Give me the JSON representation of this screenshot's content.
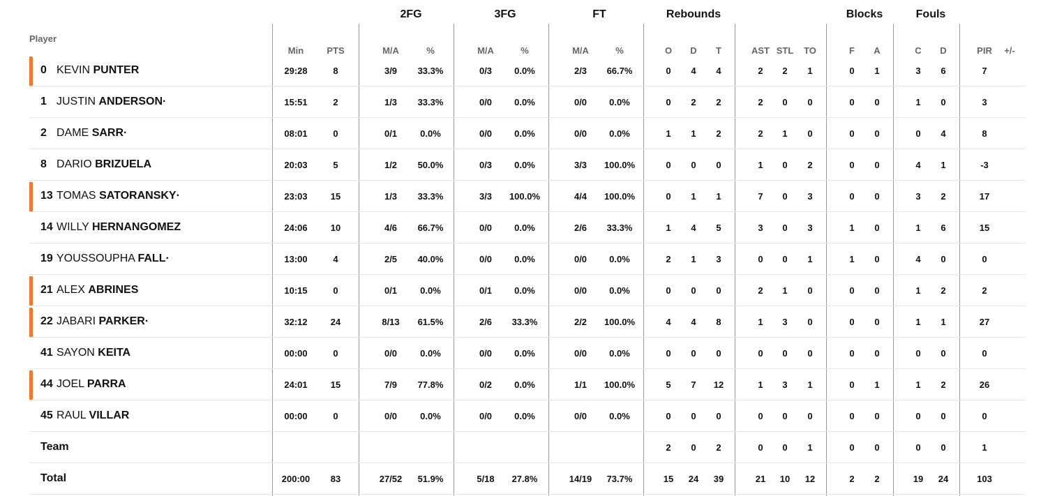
{
  "headers": {
    "player": "Player",
    "groups": {
      "fg2": "2FG",
      "fg3": "3FG",
      "ft": "FT",
      "rebounds": "Rebounds",
      "blocks": "Blocks",
      "fouls": "Fouls"
    },
    "columns": [
      "Min",
      "PTS",
      "M/A",
      "%",
      "M/A",
      "%",
      "M/A",
      "%",
      "O",
      "D",
      "T",
      "AST",
      "STL",
      "TO",
      "F",
      "A",
      "C",
      "D",
      "PIR",
      "+/-"
    ]
  },
  "colors": {
    "starter_accent": "#f4772f",
    "separator": "#9a9a9a",
    "row_line": "#e6e6e6",
    "header_text": "#666666"
  },
  "players": [
    {
      "number": "0",
      "first": "KEVIN",
      "last": "PUNTER",
      "dot": "",
      "starter": true,
      "stats": [
        "29:28",
        "8",
        "3/9",
        "33.3%",
        "0/3",
        "0.0%",
        "2/3",
        "66.7%",
        "0",
        "4",
        "4",
        "2",
        "2",
        "1",
        "0",
        "1",
        "3",
        "6",
        "7",
        ""
      ]
    },
    {
      "number": "1",
      "first": "JUSTIN",
      "last": "ANDERSON",
      "dot": "·",
      "starter": false,
      "stats": [
        "15:51",
        "2",
        "1/3",
        "33.3%",
        "0/0",
        "0.0%",
        "0/0",
        "0.0%",
        "0",
        "2",
        "2",
        "2",
        "0",
        "0",
        "0",
        "0",
        "1",
        "0",
        "3",
        ""
      ]
    },
    {
      "number": "2",
      "first": "DAME",
      "last": "SARR",
      "dot": "·",
      "starter": false,
      "stats": [
        "08:01",
        "0",
        "0/1",
        "0.0%",
        "0/0",
        "0.0%",
        "0/0",
        "0.0%",
        "1",
        "1",
        "2",
        "2",
        "1",
        "0",
        "0",
        "0",
        "0",
        "4",
        "8",
        ""
      ]
    },
    {
      "number": "8",
      "first": "DARIO",
      "last": "BRIZUELA",
      "dot": "",
      "starter": false,
      "stats": [
        "20:03",
        "5",
        "1/2",
        "50.0%",
        "0/3",
        "0.0%",
        "3/3",
        "100.0%",
        "0",
        "0",
        "0",
        "1",
        "0",
        "2",
        "0",
        "0",
        "4",
        "1",
        "-3",
        ""
      ]
    },
    {
      "number": "13",
      "first": "TOMAS",
      "last": "SATORANSKY",
      "dot": "·",
      "starter": true,
      "stats": [
        "23:03",
        "15",
        "1/3",
        "33.3%",
        "3/3",
        "100.0%",
        "4/4",
        "100.0%",
        "0",
        "1",
        "1",
        "7",
        "0",
        "3",
        "0",
        "0",
        "3",
        "2",
        "17",
        ""
      ]
    },
    {
      "number": "14",
      "first": "WILLY",
      "last": "HERNANGOMEZ",
      "dot": "",
      "starter": false,
      "stats": [
        "24:06",
        "10",
        "4/6",
        "66.7%",
        "0/0",
        "0.0%",
        "2/6",
        "33.3%",
        "1",
        "4",
        "5",
        "3",
        "0",
        "3",
        "1",
        "0",
        "1",
        "6",
        "15",
        ""
      ]
    },
    {
      "number": "19",
      "first": "YOUSSOUPHA",
      "last": "FALL",
      "dot": "·",
      "starter": false,
      "stats": [
        "13:00",
        "4",
        "2/5",
        "40.0%",
        "0/0",
        "0.0%",
        "0/0",
        "0.0%",
        "2",
        "1",
        "3",
        "0",
        "0",
        "1",
        "1",
        "0",
        "4",
        "0",
        "0",
        ""
      ]
    },
    {
      "number": "21",
      "first": "ALEX",
      "last": "ABRINES",
      "dot": "",
      "starter": true,
      "stats": [
        "10:15",
        "0",
        "0/1",
        "0.0%",
        "0/1",
        "0.0%",
        "0/0",
        "0.0%",
        "0",
        "0",
        "0",
        "2",
        "1",
        "0",
        "0",
        "0",
        "1",
        "2",
        "2",
        ""
      ]
    },
    {
      "number": "22",
      "first": "JABARI",
      "last": "PARKER",
      "dot": "·",
      "starter": true,
      "stats": [
        "32:12",
        "24",
        "8/13",
        "61.5%",
        "2/6",
        "33.3%",
        "2/2",
        "100.0%",
        "4",
        "4",
        "8",
        "1",
        "3",
        "0",
        "0",
        "0",
        "1",
        "1",
        "27",
        ""
      ]
    },
    {
      "number": "41",
      "first": "SAYON",
      "last": "KEITA",
      "dot": "",
      "starter": false,
      "stats": [
        "00:00",
        "0",
        "0/0",
        "0.0%",
        "0/0",
        "0.0%",
        "0/0",
        "0.0%",
        "0",
        "0",
        "0",
        "0",
        "0",
        "0",
        "0",
        "0",
        "0",
        "0",
        "0",
        ""
      ]
    },
    {
      "number": "44",
      "first": "JOEL",
      "last": "PARRA",
      "dot": "",
      "starter": true,
      "stats": [
        "24:01",
        "15",
        "7/9",
        "77.8%",
        "0/2",
        "0.0%",
        "1/1",
        "100.0%",
        "5",
        "7",
        "12",
        "1",
        "3",
        "1",
        "0",
        "1",
        "1",
        "2",
        "26",
        ""
      ]
    },
    {
      "number": "45",
      "first": "RAUL",
      "last": "VILLAR",
      "dot": "",
      "starter": false,
      "stats": [
        "00:00",
        "0",
        "0/0",
        "0.0%",
        "0/0",
        "0.0%",
        "0/0",
        "0.0%",
        "0",
        "0",
        "0",
        "0",
        "0",
        "0",
        "0",
        "0",
        "0",
        "0",
        "0",
        ""
      ]
    }
  ],
  "team_row": {
    "label": "Team",
    "stats": [
      "",
      "",
      "",
      "",
      "",
      "",
      "",
      "",
      "2",
      "0",
      "2",
      "0",
      "0",
      "1",
      "0",
      "0",
      "0",
      "0",
      "1",
      ""
    ]
  },
  "total_row": {
    "label": "Total",
    "stats": [
      "200:00",
      "83",
      "27/52",
      "51.9%",
      "5/18",
      "27.8%",
      "14/19",
      "73.7%",
      "15",
      "24",
      "39",
      "21",
      "10",
      "12",
      "2",
      "2",
      "19",
      "24",
      "103",
      ""
    ]
  }
}
